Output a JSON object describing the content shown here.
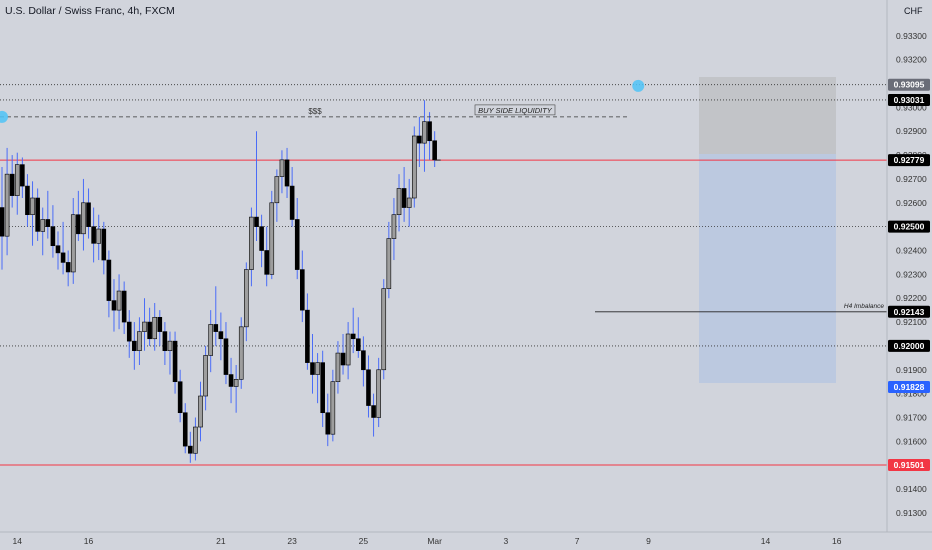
{
  "header": {
    "title": "U.S. Dollar / Swiss Franc, 4h, FXCM",
    "currency": "CHF"
  },
  "colors": {
    "background": "#d1d4dc",
    "bull_body": "#9e9e9e",
    "bear_body": "#000000",
    "wick": "#4a6cf7",
    "support_line": "#f23645",
    "dotted_line": "#333333",
    "target_zone": "#bcc9e0",
    "stop_zone": "#c2c4c8",
    "marker": "#4fc3f7",
    "highlight_tag": "#2962ff",
    "price_tag": "#000000"
  },
  "chart_data": {
    "type": "candlestick",
    "title": "U.S. Dollar / Swiss Franc, 4h, FXCM",
    "yaxis": {
      "range": [
        0.9122,
        0.9345
      ],
      "ticks": [
        0.913,
        0.914,
        0.915,
        0.916,
        0.917,
        0.918,
        0.919,
        0.92,
        0.921,
        0.922,
        0.923,
        0.924,
        0.925,
        0.926,
        0.927,
        0.928,
        0.929,
        0.93,
        0.931,
        0.932,
        0.933
      ],
      "tick_labels": [
        "0.91300",
        "0.91400",
        "0.91500",
        "0.91600",
        "0.91700",
        "0.91800",
        "0.91900",
        "0.92000",
        "0.92100",
        "0.92200",
        "0.92300",
        "0.92400",
        "0.92500",
        "0.92600",
        "0.92700",
        "0.92800",
        "0.92900",
        "0.93000",
        "0.93100",
        "0.93200",
        "0.93300"
      ]
    },
    "xaxis": {
      "labels": [
        {
          "text": "14",
          "bar": 3
        },
        {
          "text": "16",
          "bar": 17
        },
        {
          "text": "21",
          "bar": 43
        },
        {
          "text": "23",
          "bar": 57
        },
        {
          "text": "25",
          "bar": 71
        },
        {
          "text": "Mar",
          "bar": 85
        },
        {
          "text": "3",
          "bar": 99
        },
        {
          "text": "7",
          "bar": 113
        },
        {
          "text": "9",
          "bar": 127
        },
        {
          "text": "14",
          "bar": 150
        },
        {
          "text": "16",
          "bar": 164
        }
      ]
    },
    "candles": [
      [
        0.9258,
        0.9275,
        0.9232,
        0.9246
      ],
      [
        0.9246,
        0.9283,
        0.9238,
        0.9272
      ],
      [
        0.9272,
        0.928,
        0.9258,
        0.9263
      ],
      [
        0.9263,
        0.9281,
        0.9255,
        0.9276
      ],
      [
        0.9276,
        0.9279,
        0.9262,
        0.9267
      ],
      [
        0.9267,
        0.9272,
        0.925,
        0.9255
      ],
      [
        0.9255,
        0.9269,
        0.9242,
        0.9262
      ],
      [
        0.9262,
        0.9266,
        0.9244,
        0.9248
      ],
      [
        0.9248,
        0.9258,
        0.9238,
        0.9253
      ],
      [
        0.9253,
        0.9265,
        0.9245,
        0.925
      ],
      [
        0.925,
        0.9259,
        0.9237,
        0.9242
      ],
      [
        0.9242,
        0.9248,
        0.9232,
        0.9239
      ],
      [
        0.9239,
        0.9252,
        0.923,
        0.9235
      ],
      [
        0.9235,
        0.924,
        0.9225,
        0.9231
      ],
      [
        0.9231,
        0.9262,
        0.9226,
        0.9255
      ],
      [
        0.9255,
        0.9265,
        0.9244,
        0.9247
      ],
      [
        0.9247,
        0.927,
        0.924,
        0.926
      ],
      [
        0.926,
        0.9266,
        0.9245,
        0.925
      ],
      [
        0.925,
        0.9258,
        0.9235,
        0.9243
      ],
      [
        0.9243,
        0.9255,
        0.9236,
        0.9249
      ],
      [
        0.9249,
        0.9252,
        0.923,
        0.9236
      ],
      [
        0.9236,
        0.924,
        0.9212,
        0.9219
      ],
      [
        0.9219,
        0.9228,
        0.9206,
        0.9215
      ],
      [
        0.9215,
        0.923,
        0.9207,
        0.9223
      ],
      [
        0.9223,
        0.9227,
        0.9205,
        0.921
      ],
      [
        0.921,
        0.9215,
        0.9195,
        0.9202
      ],
      [
        0.9202,
        0.921,
        0.919,
        0.9198
      ],
      [
        0.9198,
        0.9212,
        0.9192,
        0.9206
      ],
      [
        0.9206,
        0.922,
        0.9198,
        0.921
      ],
      [
        0.921,
        0.9216,
        0.92,
        0.9203
      ],
      [
        0.9203,
        0.9218,
        0.9198,
        0.9212
      ],
      [
        0.9212,
        0.9215,
        0.92,
        0.9206
      ],
      [
        0.9206,
        0.921,
        0.9192,
        0.9198
      ],
      [
        0.9198,
        0.9206,
        0.9188,
        0.9202
      ],
      [
        0.9202,
        0.9206,
        0.918,
        0.9185
      ],
      [
        0.9185,
        0.919,
        0.9168,
        0.9172
      ],
      [
        0.9172,
        0.9176,
        0.9155,
        0.9158
      ],
      [
        0.9158,
        0.9164,
        0.9151,
        0.9155
      ],
      [
        0.9155,
        0.917,
        0.9152,
        0.9166
      ],
      [
        0.9166,
        0.9185,
        0.916,
        0.9179
      ],
      [
        0.9179,
        0.92,
        0.9173,
        0.9196
      ],
      [
        0.9196,
        0.9215,
        0.9189,
        0.9209
      ],
      [
        0.9209,
        0.9225,
        0.92,
        0.9206
      ],
      [
        0.9206,
        0.9214,
        0.9194,
        0.9203
      ],
      [
        0.9203,
        0.921,
        0.9184,
        0.9188
      ],
      [
        0.9188,
        0.9195,
        0.9176,
        0.9183
      ],
      [
        0.9183,
        0.9192,
        0.9172,
        0.9186
      ],
      [
        0.9186,
        0.9212,
        0.9182,
        0.9208
      ],
      [
        0.9208,
        0.9235,
        0.9202,
        0.9232
      ],
      [
        0.9232,
        0.9258,
        0.9225,
        0.9254
      ],
      [
        0.9254,
        0.929,
        0.9244,
        0.925
      ],
      [
        0.925,
        0.9255,
        0.9233,
        0.924
      ],
      [
        0.924,
        0.925,
        0.9225,
        0.923
      ],
      [
        0.923,
        0.9265,
        0.9228,
        0.926
      ],
      [
        0.926,
        0.9274,
        0.9252,
        0.9271
      ],
      [
        0.9271,
        0.9282,
        0.9264,
        0.9278
      ],
      [
        0.9278,
        0.9283,
        0.9262,
        0.9267
      ],
      [
        0.9267,
        0.9275,
        0.925,
        0.9253
      ],
      [
        0.9253,
        0.9262,
        0.9228,
        0.9232
      ],
      [
        0.9232,
        0.924,
        0.921,
        0.9215
      ],
      [
        0.9215,
        0.9222,
        0.919,
        0.9193
      ],
      [
        0.9193,
        0.9205,
        0.918,
        0.9188
      ],
      [
        0.9188,
        0.9197,
        0.9176,
        0.9193
      ],
      [
        0.9193,
        0.9198,
        0.9166,
        0.9172
      ],
      [
        0.9172,
        0.918,
        0.9158,
        0.9163
      ],
      [
        0.9163,
        0.919,
        0.916,
        0.9185
      ],
      [
        0.9185,
        0.9202,
        0.918,
        0.9197
      ],
      [
        0.9197,
        0.9205,
        0.9188,
        0.9192
      ],
      [
        0.9192,
        0.921,
        0.9186,
        0.9205
      ],
      [
        0.9205,
        0.9216,
        0.9197,
        0.9203
      ],
      [
        0.9203,
        0.9212,
        0.9195,
        0.9198
      ],
      [
        0.9198,
        0.9204,
        0.9183,
        0.919
      ],
      [
        0.919,
        0.9196,
        0.917,
        0.9175
      ],
      [
        0.9175,
        0.918,
        0.9162,
        0.917
      ],
      [
        0.917,
        0.9195,
        0.9166,
        0.919
      ],
      [
        0.919,
        0.9228,
        0.9186,
        0.9224
      ],
      [
        0.9224,
        0.9252,
        0.922,
        0.9245
      ],
      [
        0.9245,
        0.9262,
        0.9236,
        0.9255
      ],
      [
        0.9255,
        0.9272,
        0.9248,
        0.9266
      ],
      [
        0.9266,
        0.9275,
        0.9252,
        0.9258
      ],
      [
        0.9258,
        0.927,
        0.925,
        0.9262
      ],
      [
        0.9262,
        0.9292,
        0.9258,
        0.9288
      ],
      [
        0.9288,
        0.9296,
        0.9275,
        0.9285
      ],
      [
        0.9285,
        0.9303,
        0.9273,
        0.9294
      ],
      [
        0.9294,
        0.9298,
        0.9278,
        0.9286
      ],
      [
        0.9286,
        0.929,
        0.9275,
        0.9278
      ]
    ],
    "levels": [
      {
        "price": 0.93095,
        "label": "0.93095",
        "style": "dotted",
        "tag": "gray"
      },
      {
        "price": 0.93031,
        "label": "0.93031",
        "style": "dotted",
        "tag": "black"
      },
      {
        "price": 0.92779,
        "label": "0.92779",
        "style": "red",
        "tag": "black"
      },
      {
        "price": 0.925,
        "label": "0.92500",
        "style": "dotted",
        "tag": "black"
      },
      {
        "price": 0.92143,
        "label": "0.92143",
        "style": "solid-partial",
        "tag": "black"
      },
      {
        "price": 0.92,
        "label": "0.92000",
        "style": "dotted",
        "tag": "black"
      },
      {
        "price": 0.91828,
        "label": "0.91828",
        "style": "none",
        "tag": "blue"
      },
      {
        "price": 0.91501,
        "label": "0.91501",
        "style": "red",
        "tag": "red"
      }
    ],
    "annotations": {
      "bsl_text": "$$$",
      "bsl_label": "BUY SIDE LIQUIDITY",
      "bsl_price": 0.9296,
      "imbalance_label": "H4 Imbalance",
      "position": {
        "entry": 0.92779,
        "stop": 0.93095,
        "target": 0.91828
      },
      "markers": [
        {
          "bar": 0,
          "price": 0.9296
        },
        {
          "bar": 125,
          "price": 0.9309
        }
      ]
    }
  }
}
